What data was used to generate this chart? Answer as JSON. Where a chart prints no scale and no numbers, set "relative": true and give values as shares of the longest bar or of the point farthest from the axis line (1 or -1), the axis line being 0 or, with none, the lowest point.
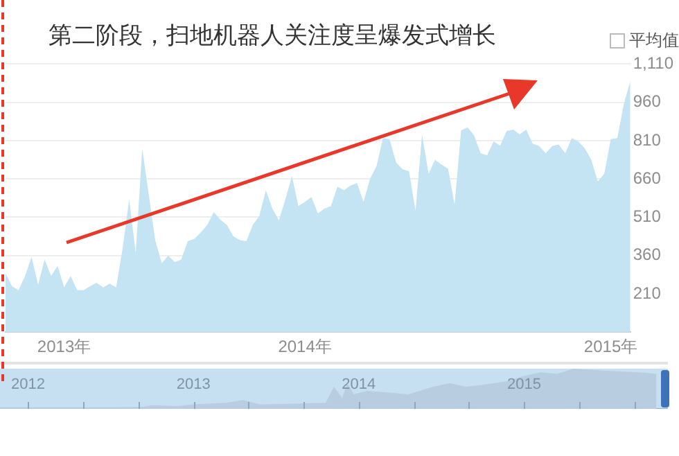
{
  "chart_data": [
    {
      "type": "area",
      "title": "第二阶段，扫地机器人关注度呈爆发式增长",
      "annotations": [
        "平均值"
      ],
      "categories": [
        null,
        null,
        null,
        null,
        null,
        null,
        null,
        null,
        null,
        "2013年",
        null,
        null,
        null,
        null,
        null,
        null,
        null,
        null,
        null,
        null,
        null,
        null,
        null,
        null,
        null,
        null,
        null,
        null,
        null,
        null,
        null,
        null,
        null,
        null,
        null,
        null,
        null,
        null,
        null,
        null,
        null,
        null,
        null,
        null,
        null,
        null,
        "2014年",
        null,
        null,
        null,
        null,
        null,
        null,
        null,
        null,
        null,
        null,
        null,
        null,
        null,
        null,
        null,
        null,
        null,
        null,
        null,
        null,
        null,
        null,
        null,
        null,
        null,
        null,
        null,
        null,
        null,
        null,
        null,
        null,
        null,
        null,
        null,
        null,
        null,
        null,
        null,
        null,
        null,
        null,
        null,
        null,
        null,
        null,
        "2015年",
        null,
        null,
        null
      ],
      "values": [
        289,
        240,
        224,
        280,
        355,
        245,
        344,
        280,
        320,
        235,
        280,
        225,
        224,
        240,
        253,
        235,
        250,
        235,
        390,
        580,
        370,
        780,
        600,
        420,
        330,
        360,
        334,
        344,
        416,
        425,
        450,
        480,
        530,
        500,
        480,
        435,
        420,
        416,
        480,
        515,
        616,
        544,
        498,
        580,
        671,
        553,
        570,
        589,
        525,
        544,
        553,
        630,
        616,
        634,
        644,
        570,
        660,
        710,
        820,
        816,
        725,
        698,
        690,
        535,
        835,
        680,
        735,
        716,
        700,
        560,
        850,
        862,
        830,
        760,
        753,
        807,
        790,
        848,
        853,
        835,
        853,
        798,
        789,
        760,
        789,
        795,
        760,
        820,
        807,
        780,
        735,
        650,
        680,
        816,
        820,
        953,
        1043
      ],
      "color": "#c4e4f3",
      "ylim": [
        60,
        1110
      ],
      "yticks": [
        210,
        360,
        510,
        660,
        810,
        960,
        {
          "value": 1110,
          "label": "1,110"
        }
      ],
      "grid": "y"
    },
    {
      "type": "area",
      "relative": true,
      "color": "#b9cde0",
      "x": [
        2011.83,
        2012.5,
        2012.7,
        2012.75,
        2012.9,
        2013.0,
        2013.2,
        2013.3,
        2013.4,
        2013.6,
        2013.8,
        2013.85,
        2013.9,
        2013.93,
        2013.97,
        2014.05,
        2014.2,
        2014.3,
        2014.45,
        2014.55,
        2014.65,
        2014.75,
        2014.9,
        2015.0,
        2015.1,
        2015.2,
        2015.3,
        2015.5,
        2015.7,
        2015.8
      ],
      "values": [
        0.04,
        0.04,
        0.05,
        0.09,
        0.07,
        0.11,
        0.15,
        0.22,
        0.11,
        0.13,
        0.15,
        0.55,
        0.27,
        0.64,
        0.36,
        0.45,
        0.4,
        0.36,
        0.55,
        0.64,
        0.55,
        0.6,
        0.69,
        0.82,
        0.91,
        0.87,
        1,
        0.95,
        0.91,
        0.87
      ],
      "xlim": [
        2011.83,
        2015.87
      ],
      "xticks": [
        2012,
        {
          "value": 2012.333,
          "label": null
        },
        {
          "value": 2012.667,
          "label": null
        },
        2013,
        {
          "value": 2013.333,
          "label": null
        },
        {
          "value": 2013.667,
          "label": null
        },
        2014,
        {
          "value": 2014.333,
          "label": null
        },
        {
          "value": 2014.667,
          "label": null
        },
        2015,
        {
          "value": 2015.333,
          "label": null
        },
        {
          "value": 2015.667,
          "label": null
        }
      ]
    }
  ]
}
